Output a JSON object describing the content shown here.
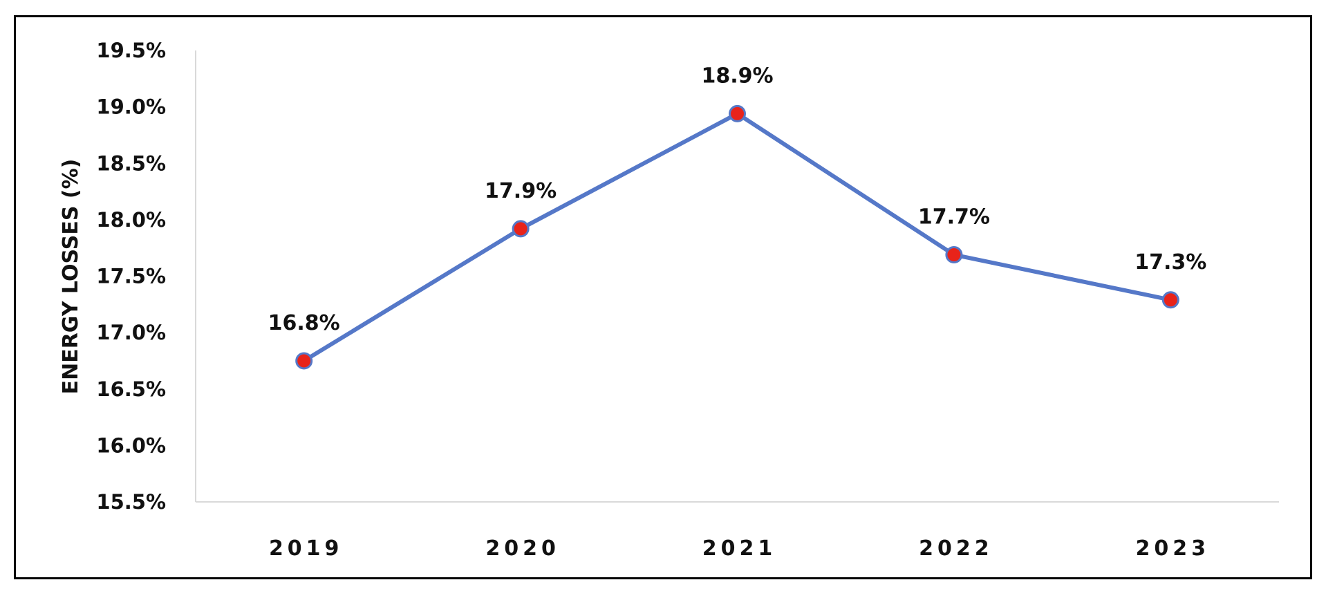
{
  "chart_data": {
    "type": "line",
    "title": "",
    "xlabel": "",
    "ylabel": "ENERGY LOSSES (%)",
    "categories": [
      "2019",
      "2020",
      "2021",
      "2022",
      "2023"
    ],
    "series": [
      {
        "values": [
          16.75,
          17.92,
          18.94,
          17.69,
          17.29
        ],
        "data_labels": [
          "16.8%",
          "17.9%",
          "18.9%",
          "17.7%",
          "17.3%"
        ]
      }
    ],
    "ylim": [
      15.5,
      19.5
    ],
    "yticks": [
      "15.5%",
      "16.0%",
      "16.5%",
      "17.0%",
      "17.5%",
      "18.0%",
      "18.5%",
      "19.0%",
      "19.5%"
    ],
    "grid": false,
    "legend": "none",
    "colors": {
      "line": "#5578C8",
      "marker_fill": "#E8231A",
      "marker_edge": "#5578C8",
      "axis": "#D9D9D9"
    }
  }
}
